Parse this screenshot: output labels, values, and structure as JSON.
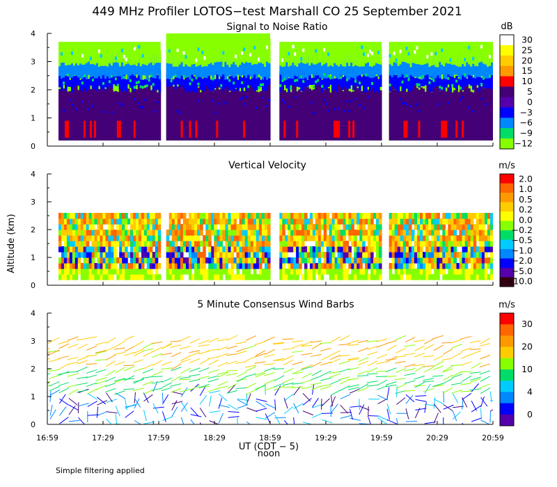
{
  "title": "449 MHz Profiler LOTOS−test Marshall CO 25 September 2021",
  "footnote": "Simple filtering applied",
  "colors": {
    "white": "#ffffff",
    "yellow": "#ffff00",
    "gold": "#ffcc00",
    "orange": "#ff9900",
    "dark_orange": "#ff6600",
    "red": "#ff0000",
    "dark_purple": "#440077",
    "purple": "#5500aa",
    "blue": "#0000ff",
    "light_blue": "#0088ff",
    "cyan": "#00ccff",
    "green": "#00dd66",
    "lime": "#88ff00",
    "dark_maroon": "#330011"
  },
  "chart_data": [
    {
      "type": "heatmap",
      "title": "Signal to Noise Ratio",
      "xlabel": "UT (CDT − 5)",
      "xlabel_sub": "noon",
      "ylabel": "Altitude (km)",
      "x_start": "16:59",
      "x_end": "20:59",
      "xticks": [
        "16:59",
        "17:29",
        "17:59",
        "18:29",
        "18:59",
        "19:29",
        "19:59",
        "20:29",
        "20:59"
      ],
      "ylim": [
        0,
        4
      ],
      "yticks": [
        "0",
        "1",
        "2",
        "3",
        "4"
      ],
      "colorbar": {
        "unit": "dB",
        "labels": [
          "30",
          "25",
          "20",
          "15",
          "10",
          "5",
          "0",
          "−3",
          "−6",
          "−9",
          "−12"
        ],
        "colors": [
          "white",
          "yellow",
          "gold",
          "orange",
          "red",
          "dark_purple",
          "purple",
          "blue",
          "light_blue",
          "green",
          "lime"
        ]
      },
      "data_blocks": [
        {
          "start": "17:05",
          "end": "18:00",
          "altitude_km": [
            0.2,
            3.7
          ]
        },
        {
          "start": "18:03",
          "end": "18:59",
          "altitude_km": [
            0.2,
            4.0
          ]
        },
        {
          "start": "19:04",
          "end": "19:59",
          "altitude_km": [
            0.2,
            3.7
          ]
        },
        {
          "start": "20:03",
          "end": "20:59",
          "altitude_km": [
            0.2,
            3.7
          ]
        }
      ],
      "layers": [
        {
          "range_km": [
            0.2,
            2.0
          ],
          "value": "0 to 5 dB",
          "color": "dark_purple"
        },
        {
          "range_km": [
            1.3,
            2.5
          ],
          "value": "−3 to 0 dB",
          "color": "blue"
        },
        {
          "range_km": [
            2.3,
            3.2
          ],
          "value": "−6 to −9 dB",
          "color": "light_blue"
        },
        {
          "range_km": [
            2.8,
            3.7
          ],
          "value": "−9 to −12 dB",
          "color": "lime"
        }
      ]
    },
    {
      "type": "heatmap",
      "title": "Vertical Velocity",
      "ylim": [
        0,
        4
      ],
      "yticks": [
        "0",
        "1",
        "2",
        "3",
        "4"
      ],
      "colorbar": {
        "unit": "m/s",
        "labels": [
          "2.0",
          "1.0",
          "0.5",
          "0.2",
          "0.0",
          "−0.2",
          "−0.5",
          "−1.0",
          "−2.0",
          "−5.0",
          "−10.0"
        ],
        "colors": [
          "red",
          "dark_orange",
          "orange",
          "gold",
          "yellow",
          "lime",
          "green",
          "cyan",
          "light_blue",
          "blue",
          "purple",
          "dark_maroon"
        ]
      },
      "value_range_m_s": [
        -10.0,
        2.0
      ],
      "dominant": "0.2 to 1.0 m/s in 1.5–2.5 km layer"
    },
    {
      "type": "scatter",
      "title": "5 Minute Consensus Wind Barbs",
      "ylim": [
        0,
        4
      ],
      "yticks": [
        "0",
        "1",
        "2",
        "3",
        "4"
      ],
      "colorbar": {
        "unit": "m/s",
        "labels": [
          "30",
          "20",
          "10",
          "4",
          "0"
        ],
        "colors": [
          "red",
          "dark_orange",
          "orange",
          "gold",
          "lime",
          "green",
          "cyan",
          "light_blue",
          "blue",
          "purple"
        ]
      },
      "wind_speed_by_altitude": [
        {
          "altitude_km": [
            0.0,
            1.2
          ],
          "speed_m_s": [
            0,
            8
          ]
        },
        {
          "altitude_km": [
            1.2,
            2.1
          ],
          "speed_m_s": [
            10,
            14
          ]
        },
        {
          "altitude_km": [
            2.1,
            3.2
          ],
          "speed_m_s": [
            15,
            22
          ]
        }
      ]
    }
  ]
}
